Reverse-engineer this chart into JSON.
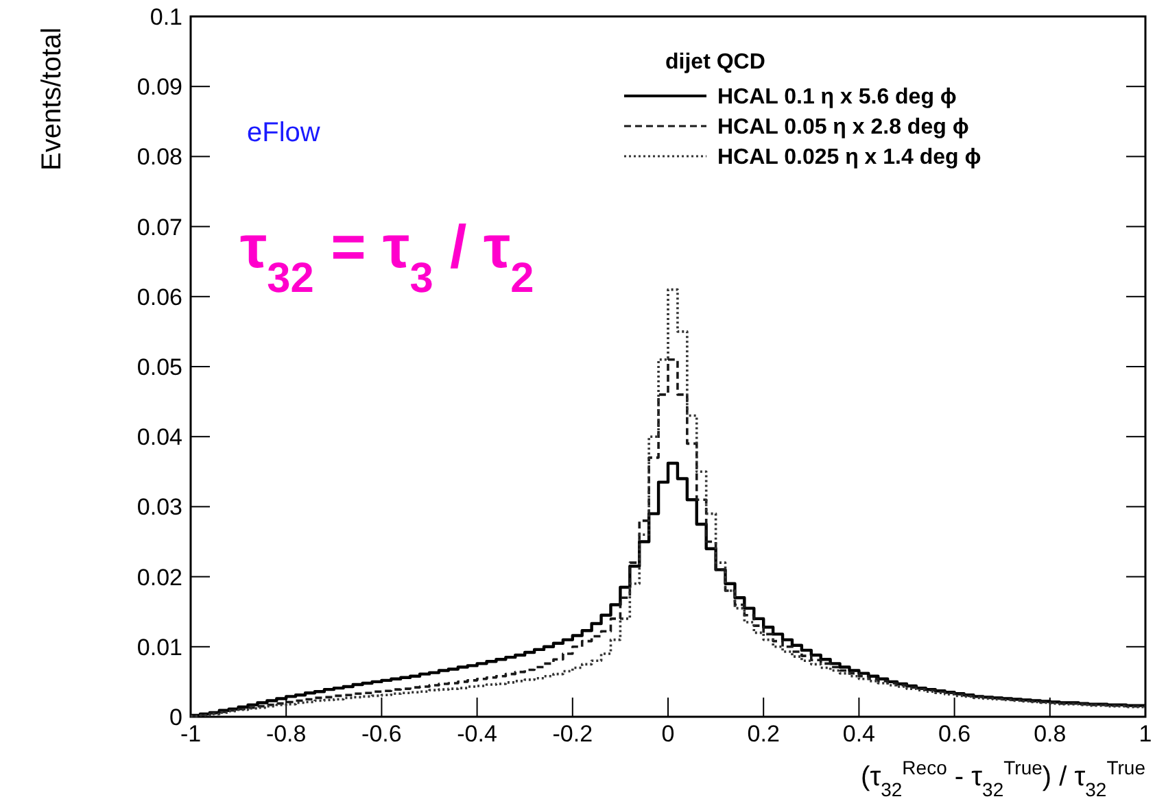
{
  "chart_data": {
    "type": "histogram",
    "ylabel": "Events/total",
    "xlabel": "(τ$_{32}$$^{Reco}$ - τ$_{32}$$^{True}$) / τ$_{32}$$^{True}$",
    "legend_title": "dijet QCD",
    "legend": "top right",
    "annotations": [
      "eFlow",
      "τ$_{32}$ = τ$_{3}$ / τ$_{2}$"
    ],
    "xlim": [
      -1,
      1
    ],
    "xticks": [
      -1,
      -0.8,
      -0.6,
      -0.4,
      -0.2,
      0,
      0.2,
      0.4,
      0.6,
      0.8,
      1
    ],
    "ylim": [
      0,
      0.1
    ],
    "yticks": [
      0,
      0.01,
      0.02,
      0.03,
      0.04,
      0.05,
      0.06,
      0.07,
      0.08,
      0.09,
      0.1
    ],
    "bins": [
      -1,
      -0.98,
      -0.96,
      -0.94,
      -0.92,
      -0.9,
      -0.88,
      -0.86,
      -0.84,
      -0.82,
      -0.8,
      -0.78,
      -0.76,
      -0.74,
      -0.72,
      -0.7,
      -0.68,
      -0.66,
      -0.64,
      -0.62,
      -0.6,
      -0.58,
      -0.56,
      -0.54,
      -0.52,
      -0.5,
      -0.48,
      -0.46,
      -0.44,
      -0.42,
      -0.4,
      -0.38,
      -0.36,
      -0.34,
      -0.32,
      -0.3,
      -0.28,
      -0.26,
      -0.24,
      -0.22,
      -0.2,
      -0.18,
      -0.16,
      -0.14,
      -0.12,
      -0.1,
      -0.08,
      -0.06,
      -0.04,
      -0.02,
      0,
      0.02,
      0.04,
      0.06,
      0.08,
      0.1,
      0.12,
      0.14,
      0.16,
      0.18,
      0.2,
      0.22,
      0.24,
      0.26,
      0.28,
      0.3,
      0.32,
      0.34,
      0.36,
      0.38,
      0.4,
      0.42,
      0.44,
      0.46,
      0.48,
      0.5,
      0.52,
      0.54,
      0.56,
      0.58,
      0.6,
      0.62,
      0.64,
      0.66,
      0.68,
      0.7,
      0.72,
      0.74,
      0.76,
      0.78,
      0.8,
      0.82,
      0.84,
      0.86,
      0.88,
      0.9,
      0.92,
      0.94,
      0.96,
      0.98,
      1
    ],
    "series": [
      {
        "name": "HCAL 0.1 η x 5.6 deg ϕ",
        "color": "#000000",
        "line_style": "solid",
        "values": [
          0.0002,
          0.0004,
          0.0006,
          0.0009,
          0.0011,
          0.0014,
          0.0017,
          0.002,
          0.0023,
          0.0026,
          0.0029,
          0.0031,
          0.0034,
          0.0036,
          0.0039,
          0.0041,
          0.0043,
          0.0046,
          0.0048,
          0.005,
          0.0052,
          0.0054,
          0.0056,
          0.0058,
          0.0061,
          0.0063,
          0.0066,
          0.0068,
          0.0071,
          0.0073,
          0.0076,
          0.0079,
          0.0082,
          0.0085,
          0.0088,
          0.0092,
          0.0096,
          0.01,
          0.0105,
          0.011,
          0.0116,
          0.0123,
          0.0133,
          0.0145,
          0.016,
          0.0185,
          0.0215,
          0.025,
          0.029,
          0.0335,
          0.0362,
          0.034,
          0.031,
          0.0275,
          0.024,
          0.021,
          0.019,
          0.017,
          0.0155,
          0.014,
          0.0128,
          0.0118,
          0.011,
          0.0102,
          0.0095,
          0.0088,
          0.0082,
          0.0076,
          0.0071,
          0.0066,
          0.0062,
          0.0058,
          0.0054,
          0.005,
          0.0047,
          0.0044,
          0.0041,
          0.0039,
          0.0037,
          0.0035,
          0.0033,
          0.0031,
          0.0029,
          0.0028,
          0.0027,
          0.0026,
          0.0025,
          0.0024,
          0.0023,
          0.0022,
          0.0021,
          0.002,
          0.002,
          0.0019,
          0.0018,
          0.0018,
          0.0017,
          0.0017,
          0.0016,
          0.0016
        ]
      },
      {
        "name": "HCAL 0.05 η x 2.8 deg ϕ",
        "color": "#1a1a1a",
        "line_style": "dashed",
        "values": [
          0.0001,
          0.0003,
          0.0005,
          0.0007,
          0.0009,
          0.0011,
          0.0013,
          0.0015,
          0.0017,
          0.0019,
          0.0021,
          0.0023,
          0.0025,
          0.0027,
          0.0028,
          0.003,
          0.0031,
          0.0033,
          0.0034,
          0.0036,
          0.0037,
          0.0039,
          0.004,
          0.0042,
          0.0043,
          0.0045,
          0.0047,
          0.0048,
          0.005,
          0.0052,
          0.0054,
          0.0056,
          0.0058,
          0.0061,
          0.0064,
          0.0067,
          0.0071,
          0.0076,
          0.0082,
          0.009,
          0.01,
          0.0108,
          0.0115,
          0.0122,
          0.014,
          0.017,
          0.022,
          0.028,
          0.037,
          0.046,
          0.051,
          0.046,
          0.039,
          0.031,
          0.025,
          0.021,
          0.018,
          0.016,
          0.0145,
          0.013,
          0.0118,
          0.0108,
          0.01,
          0.0093,
          0.0087,
          0.0081,
          0.0076,
          0.0071,
          0.0066,
          0.0062,
          0.0058,
          0.0054,
          0.0051,
          0.0048,
          0.0045,
          0.0042,
          0.004,
          0.0038,
          0.0036,
          0.0034,
          0.0032,
          0.003,
          0.0029,
          0.0027,
          0.0026,
          0.0025,
          0.0024,
          0.0023,
          0.0022,
          0.0021,
          0.002,
          0.0019,
          0.0019,
          0.0018,
          0.0017,
          0.0017,
          0.0016,
          0.0016,
          0.0015,
          0.0015
        ]
      },
      {
        "name": "HCAL 0.025 η x 1.4 deg ϕ",
        "color": "#333333",
        "line_style": "dotted",
        "values": [
          0.0001,
          0.0002,
          0.0004,
          0.0006,
          0.0008,
          0.001,
          0.0012,
          0.0013,
          0.0015,
          0.0017,
          0.0018,
          0.002,
          0.0021,
          0.0023,
          0.0024,
          0.0025,
          0.0027,
          0.0028,
          0.0029,
          0.003,
          0.0031,
          0.0033,
          0.0034,
          0.0035,
          0.0036,
          0.0038,
          0.0039,
          0.004,
          0.0041,
          0.0043,
          0.0044,
          0.0046,
          0.0047,
          0.0049,
          0.0051,
          0.0053,
          0.0055,
          0.0058,
          0.0061,
          0.0065,
          0.007,
          0.0075,
          0.008,
          0.009,
          0.011,
          0.014,
          0.019,
          0.026,
          0.04,
          0.051,
          0.061,
          0.055,
          0.043,
          0.035,
          0.029,
          0.022,
          0.018,
          0.0155,
          0.0135,
          0.012,
          0.011,
          0.01,
          0.0093,
          0.0086,
          0.008,
          0.0075,
          0.007,
          0.0066,
          0.0062,
          0.0058,
          0.0054,
          0.0051,
          0.0048,
          0.0045,
          0.0043,
          0.004,
          0.0038,
          0.0036,
          0.0034,
          0.0032,
          0.003,
          0.0029,
          0.0027,
          0.0026,
          0.0025,
          0.0024,
          0.0023,
          0.0022,
          0.0021,
          0.002,
          0.0019,
          0.0018,
          0.0018,
          0.0017,
          0.0016,
          0.0016,
          0.0015,
          0.0015,
          0.0014,
          0.0014
        ]
      }
    ]
  }
}
